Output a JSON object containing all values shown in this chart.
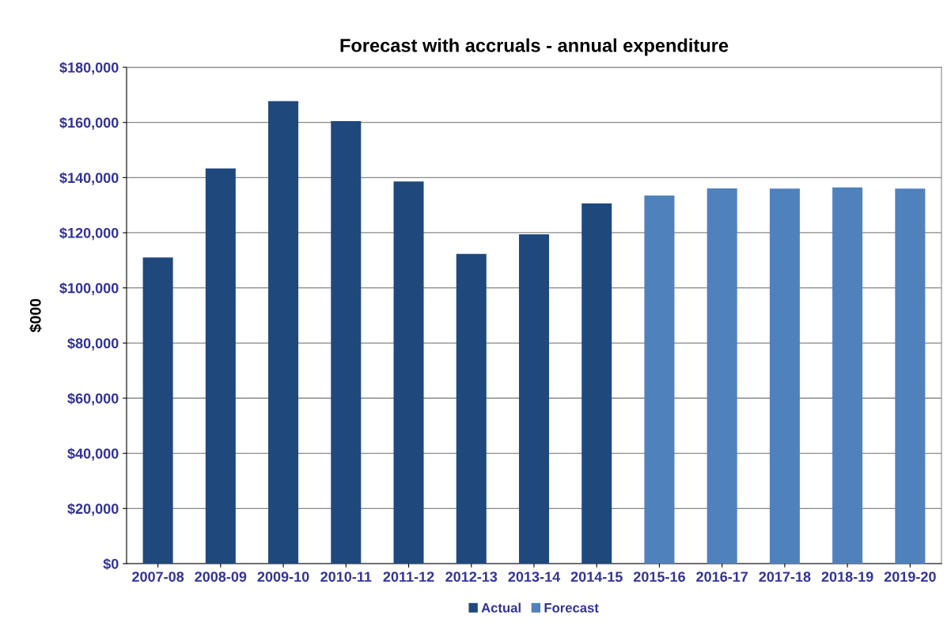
{
  "chart_data": {
    "type": "bar",
    "title": "Forecast with accruals - annual expenditure",
    "ylabel": "$000",
    "categories": [
      "2007-08",
      "2008-09",
      "2009-10",
      "2010-11",
      "2011-12",
      "2012-13",
      "2013-14",
      "2014-15",
      "2015-16",
      "2016-17",
      "2017-18",
      "2018-19",
      "2019-20"
    ],
    "series": [
      {
        "name": "Actual",
        "color": "#1f497d",
        "values": [
          111000,
          143300,
          167700,
          160500,
          138600,
          112300,
          119400,
          130600,
          null,
          null,
          null,
          null,
          null
        ]
      },
      {
        "name": "Forecast",
        "color": "#4f81bd",
        "values": [
          null,
          null,
          null,
          null,
          null,
          null,
          null,
          null,
          133500,
          136100,
          136000,
          136400,
          136000
        ]
      }
    ],
    "ylim": [
      0,
      180000
    ],
    "yticks": [
      {
        "value": 0,
        "label": "$0"
      },
      {
        "value": 20000,
        "label": "$20,000"
      },
      {
        "value": 40000,
        "label": "$40,000"
      },
      {
        "value": 60000,
        "label": "$60,000"
      },
      {
        "value": 80000,
        "label": "$80,000"
      },
      {
        "value": 100000,
        "label": "$100,000"
      },
      {
        "value": 120000,
        "label": "$120,000"
      },
      {
        "value": 140000,
        "label": "$140,000"
      },
      {
        "value": 160000,
        "label": "$160,000"
      },
      {
        "value": 180000,
        "label": "$180,000"
      }
    ],
    "grid": "y",
    "legend": "bottom"
  }
}
